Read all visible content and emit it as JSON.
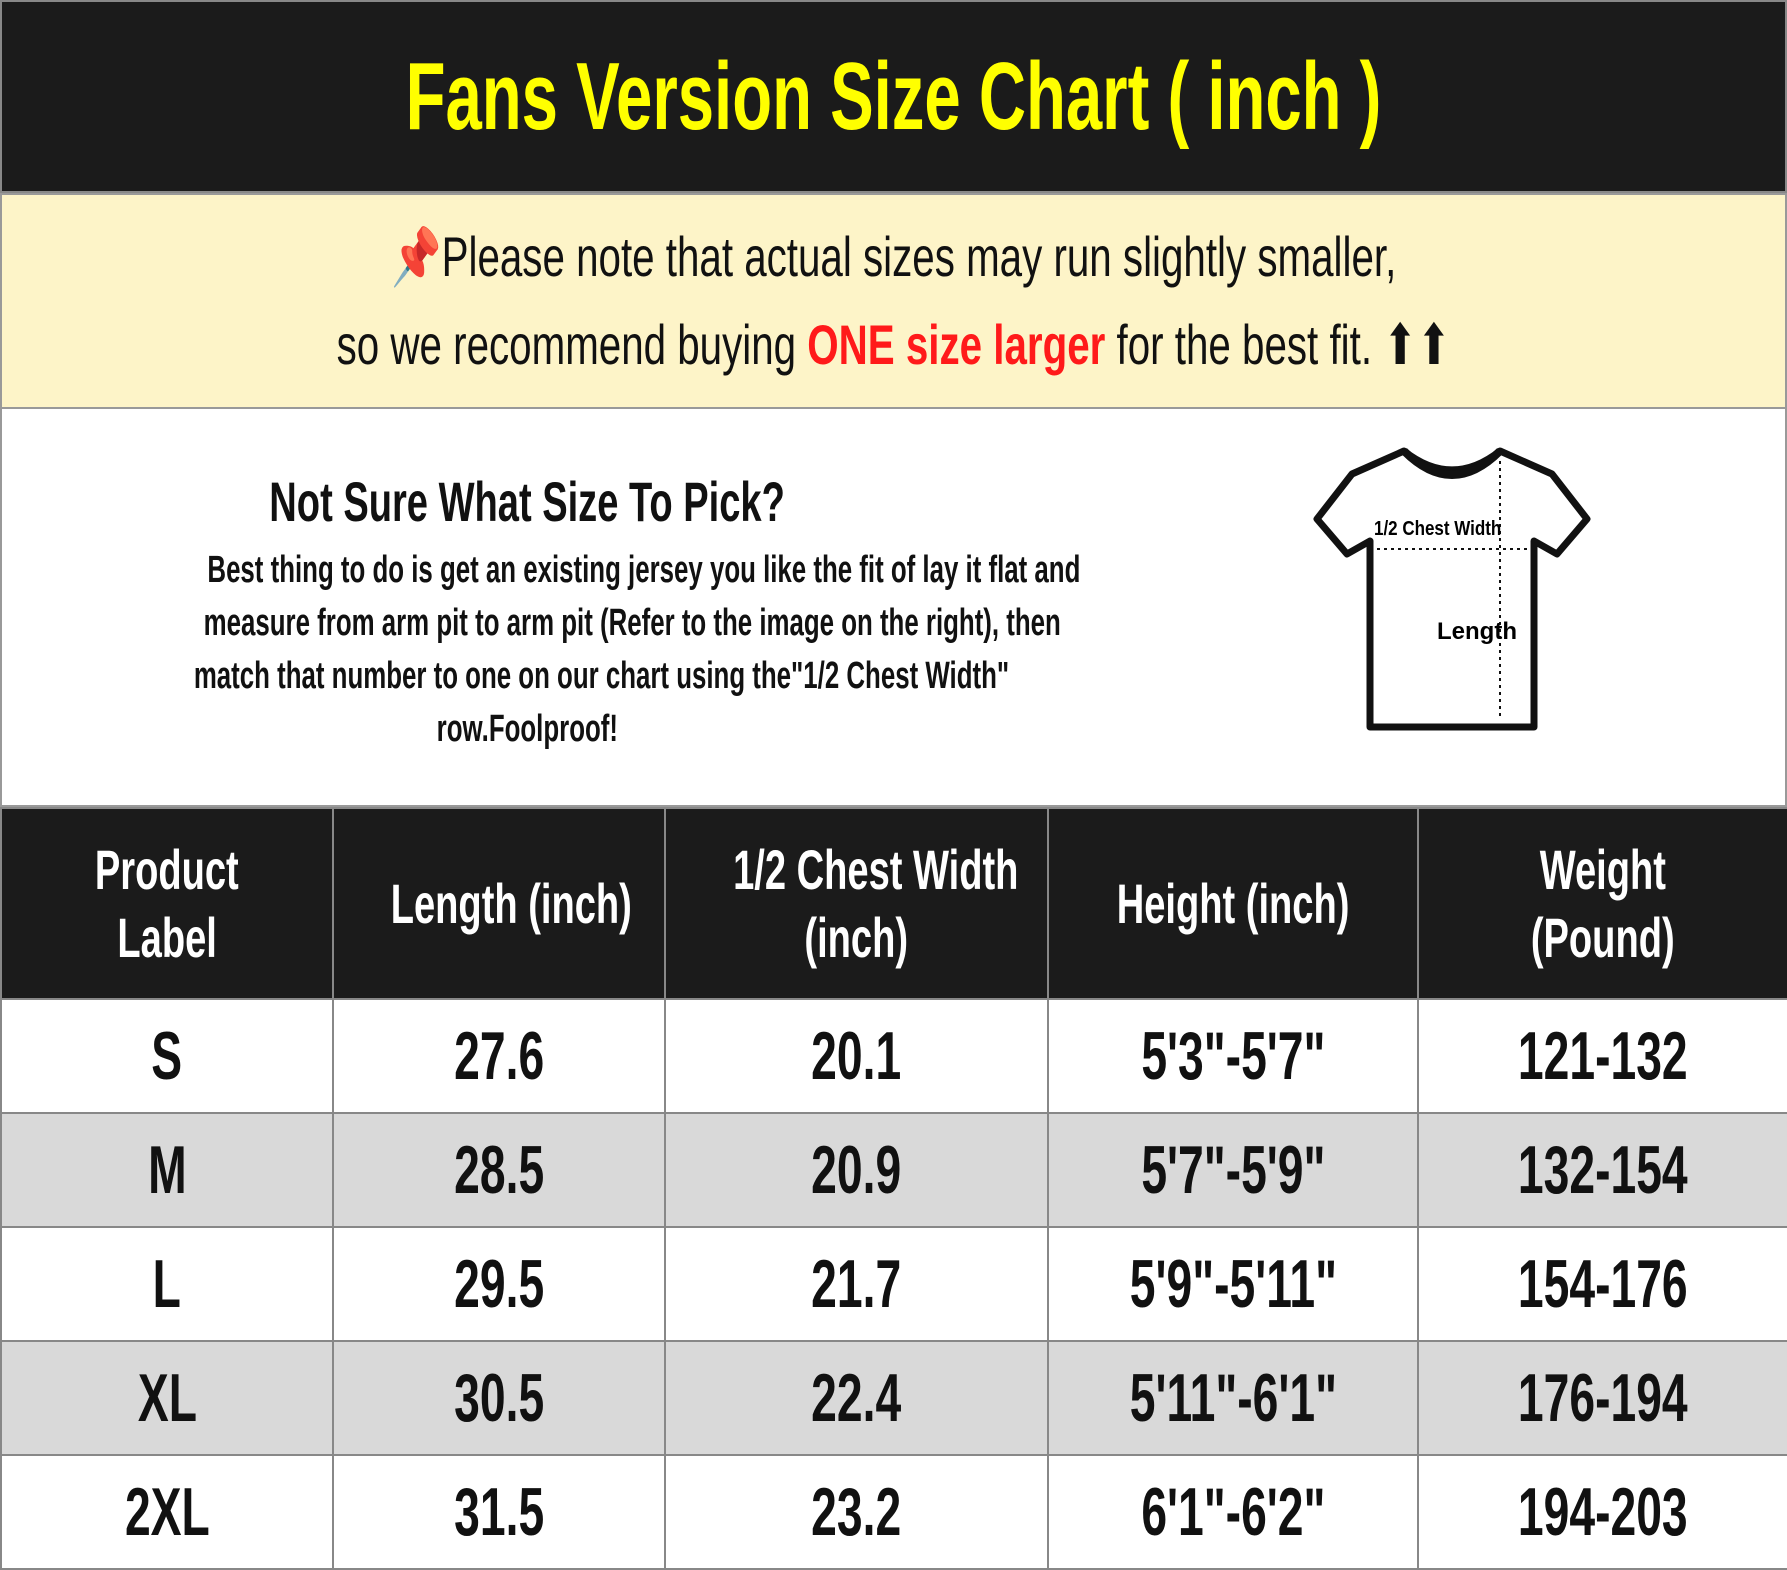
{
  "title": "Fans Version Size Chart ( inch )",
  "note": {
    "line1": "Please note that actual sizes may run slightly smaller,",
    "line2_before": "so we recommend buying ",
    "line2_highlight": "ONE size larger",
    "line2_after": " for the best fit. ⬆⬆",
    "icon": "pushpin-icon",
    "highlight_color": "#ff1a1a"
  },
  "info": {
    "heading": "Not Sure What Size To Pick?",
    "lines": [
      "Best thing to do is get an existing jersey you like the fit of lay it flat and",
      "measure from arm pit to arm pit (Refer to the image on the right), then",
      "match that number to one on our chart using the\"1/2 Chest Width\"",
      "row.Foolproof!"
    ],
    "diagram": {
      "chest_label": "1/2 Chest Width",
      "length_label": "Length"
    }
  },
  "table": {
    "headers": [
      [
        "Product",
        "Label"
      ],
      [
        "Length (inch)"
      ],
      [
        "1/2 Chest Width",
        "(inch)"
      ],
      [
        "Height (inch)"
      ],
      [
        "Weight",
        "(Pound)"
      ]
    ],
    "rows": [
      [
        "S",
        "27.6",
        "20.1",
        "5'3\"-5'7\"",
        "121-132"
      ],
      [
        "M",
        "28.5",
        "20.9",
        "5'7\"-5'9\"",
        "132-154"
      ],
      [
        "L",
        "29.5",
        "21.7",
        "5'9\"-5'11\"",
        "154-176"
      ],
      [
        "XL",
        "30.5",
        "22.4",
        "5'11\"-6'1\"",
        "176-194"
      ],
      [
        "2XL",
        "31.5",
        "23.2",
        "6'1\"-6'2\"",
        "194-203"
      ]
    ]
  }
}
